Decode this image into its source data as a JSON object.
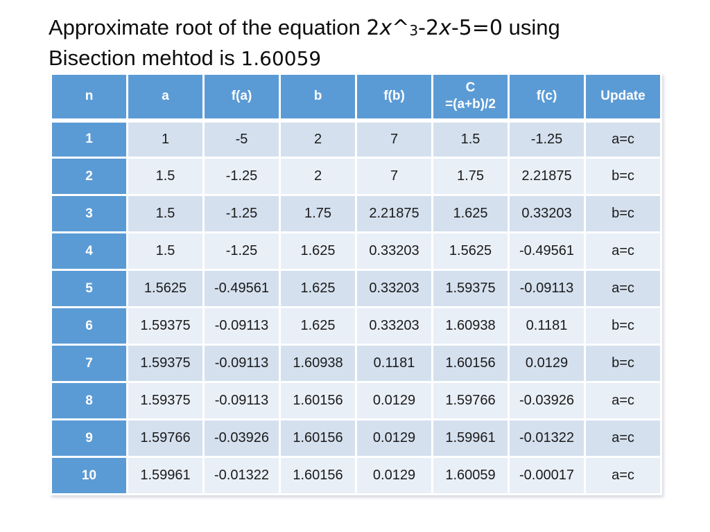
{
  "colors": {
    "header_bg": "#5B9BD5",
    "band_dark": "#D4E0EE",
    "band_light": "#E9EFF7",
    "border_color": "#FFFFFF",
    "header_text": "#FFFFFF",
    "body_text": "#1A1A1A"
  },
  "title": {
    "before_equation": "Approximate root of the equation ",
    "equation": {
      "coef1": "2",
      "var1": "x",
      "caret": "^",
      "exponent": "3",
      "mid": "-2",
      "var2": "x",
      "tail": "-5=0"
    },
    "after_equation": " using",
    "line2_prefix": "Bisection mehtod is ",
    "result": "1.60059"
  },
  "table": {
    "columns": [
      "n",
      "a",
      "f(a)",
      "b",
      "f(b)",
      "C\n=(a+b)/2",
      "f(c)",
      "Update"
    ],
    "rows": [
      [
        "1",
        "1",
        "-5",
        "2",
        "7",
        "1.5",
        "-1.25",
        "a=c"
      ],
      [
        "2",
        "1.5",
        "-1.25",
        "2",
        "7",
        "1.75",
        "2.21875",
        "b=c"
      ],
      [
        "3",
        "1.5",
        "-1.25",
        "1.75",
        "2.21875",
        "1.625",
        "0.33203",
        "b=c"
      ],
      [
        "4",
        "1.5",
        "-1.25",
        "1.625",
        "0.33203",
        "1.5625",
        "-0.49561",
        "a=c"
      ],
      [
        "5",
        "1.5625",
        "-0.49561",
        "1.625",
        "0.33203",
        "1.59375",
        "-0.09113",
        "a=c"
      ],
      [
        "6",
        "1.59375",
        "-0.09113",
        "1.625",
        "0.33203",
        "1.60938",
        "0.1181",
        "b=c"
      ],
      [
        "7",
        "1.59375",
        "-0.09113",
        "1.60938",
        "0.1181",
        "1.60156",
        "0.0129",
        "b=c"
      ],
      [
        "8",
        "1.59375",
        "-0.09113",
        "1.60156",
        "0.0129",
        "1.59766",
        "-0.03926",
        "a=c"
      ],
      [
        "9",
        "1.59766",
        "-0.03926",
        "1.60156",
        "0.0129",
        "1.59961",
        "-0.01322",
        "a=c"
      ],
      [
        "10",
        "1.59961",
        "-0.01322",
        "1.60156",
        "0.0129",
        "1.60059",
        "-0.00017",
        "a=c"
      ]
    ]
  }
}
